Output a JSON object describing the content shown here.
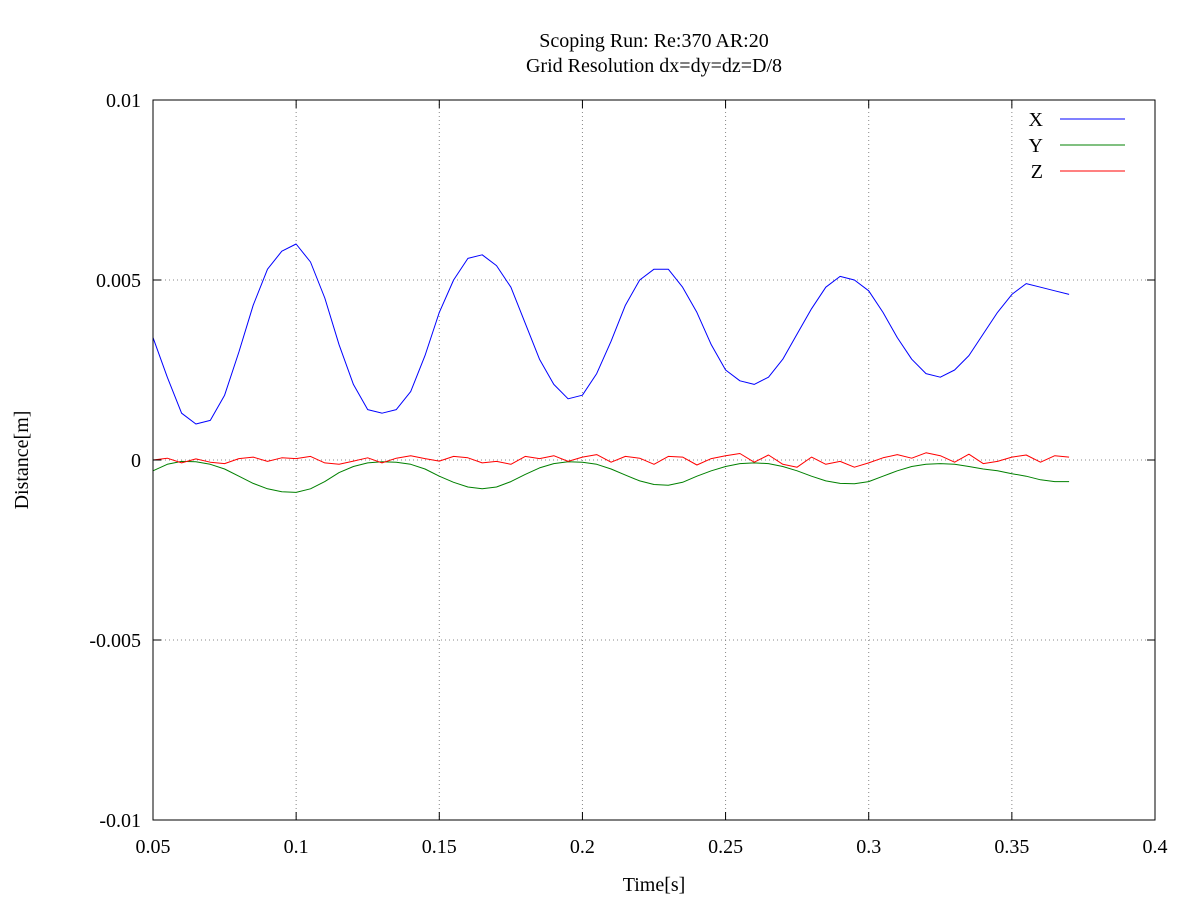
{
  "chart_data": {
    "type": "line",
    "title": "Scoping Run: Re:370  AR:20",
    "subtitle": "Grid Resolution dx=dy=dz=D/8",
    "xlabel": "Time[s]",
    "ylabel": "Distance[m]",
    "xlim": [
      0.05,
      0.4
    ],
    "ylim": [
      -0.01,
      0.01
    ],
    "xticks": [
      "0.05",
      "0.1",
      "0.15",
      "0.2",
      "0.25",
      "0.3",
      "0.35",
      "0.4"
    ],
    "yticks": [
      "-0.01",
      "-0.005",
      "0",
      "0.005",
      "0.01"
    ],
    "grid": true,
    "legend_position": "top-right",
    "series": [
      {
        "name": "X",
        "color": "#0000ff",
        "x": [
          0.05,
          0.055,
          0.06,
          0.065,
          0.07,
          0.075,
          0.08,
          0.085,
          0.09,
          0.095,
          0.1,
          0.105,
          0.11,
          0.115,
          0.12,
          0.125,
          0.13,
          0.135,
          0.14,
          0.145,
          0.15,
          0.155,
          0.16,
          0.165,
          0.17,
          0.175,
          0.18,
          0.185,
          0.19,
          0.195,
          0.2,
          0.205,
          0.21,
          0.215,
          0.22,
          0.225,
          0.23,
          0.235,
          0.24,
          0.245,
          0.25,
          0.255,
          0.26,
          0.265,
          0.27,
          0.275,
          0.28,
          0.285,
          0.29,
          0.295,
          0.3,
          0.305,
          0.31,
          0.315,
          0.32,
          0.325,
          0.33,
          0.335,
          0.34,
          0.345,
          0.35,
          0.355,
          0.36,
          0.365,
          0.37
        ],
        "y": [
          0.0034,
          0.0023,
          0.0013,
          0.001,
          0.0011,
          0.0018,
          0.003,
          0.0043,
          0.0053,
          0.0058,
          0.006,
          0.0055,
          0.0045,
          0.0032,
          0.0021,
          0.0014,
          0.0013,
          0.0014,
          0.0019,
          0.0029,
          0.0041,
          0.005,
          0.0056,
          0.0057,
          0.0054,
          0.0048,
          0.0038,
          0.0028,
          0.0021,
          0.0017,
          0.0018,
          0.0024,
          0.0033,
          0.0043,
          0.005,
          0.0053,
          0.0053,
          0.0048,
          0.0041,
          0.0032,
          0.0025,
          0.0022,
          0.0021,
          0.0023,
          0.0028,
          0.0035,
          0.0042,
          0.0048,
          0.0051,
          0.005,
          0.0047,
          0.0041,
          0.0034,
          0.0028,
          0.0024,
          0.0023,
          0.0025,
          0.0029,
          0.0035,
          0.0041,
          0.0046,
          0.0049,
          0.0048,
          0.0047,
          0.0046
        ]
      },
      {
        "name": "Y",
        "color": "#008000",
        "x": [
          0.05,
          0.055,
          0.06,
          0.065,
          0.07,
          0.075,
          0.08,
          0.085,
          0.09,
          0.095,
          0.1,
          0.105,
          0.11,
          0.115,
          0.12,
          0.125,
          0.13,
          0.135,
          0.14,
          0.145,
          0.15,
          0.155,
          0.16,
          0.165,
          0.17,
          0.175,
          0.18,
          0.185,
          0.19,
          0.195,
          0.2,
          0.205,
          0.21,
          0.215,
          0.22,
          0.225,
          0.23,
          0.235,
          0.24,
          0.245,
          0.25,
          0.255,
          0.26,
          0.265,
          0.27,
          0.275,
          0.28,
          0.285,
          0.29,
          0.295,
          0.3,
          0.305,
          0.31,
          0.315,
          0.32,
          0.325,
          0.33,
          0.335,
          0.34,
          0.345,
          0.35,
          0.355,
          0.36,
          0.365,
          0.37
        ],
        "y": [
          -0.0003,
          -0.00012,
          -4e-05,
          -5e-05,
          -0.00012,
          -0.00025,
          -0.00045,
          -0.00065,
          -0.0008,
          -0.00088,
          -0.0009,
          -0.0008,
          -0.0006,
          -0.00035,
          -0.00018,
          -8e-05,
          -5e-05,
          -6e-05,
          -0.00012,
          -0.00025,
          -0.00045,
          -0.00062,
          -0.00075,
          -0.0008,
          -0.00075,
          -0.0006,
          -0.0004,
          -0.00022,
          -0.0001,
          -5e-05,
          -6e-05,
          -0.00012,
          -0.00025,
          -0.00042,
          -0.00058,
          -0.00068,
          -0.0007,
          -0.00062,
          -0.00045,
          -0.0003,
          -0.00018,
          -0.0001,
          -8e-05,
          -0.0001,
          -0.00018,
          -0.0003,
          -0.00045,
          -0.00058,
          -0.00065,
          -0.00066,
          -0.0006,
          -0.00045,
          -0.0003,
          -0.00018,
          -0.00012,
          -0.0001,
          -0.00012,
          -0.00018,
          -0.00025,
          -0.0003,
          -0.00038,
          -0.00045,
          -0.00055,
          -0.0006,
          -0.0006
        ]
      },
      {
        "name": "Z",
        "color": "#ff0000",
        "x": [
          0.05,
          0.055,
          0.06,
          0.065,
          0.07,
          0.075,
          0.08,
          0.085,
          0.09,
          0.095,
          0.1,
          0.105,
          0.11,
          0.115,
          0.12,
          0.125,
          0.13,
          0.135,
          0.14,
          0.145,
          0.15,
          0.155,
          0.16,
          0.165,
          0.17,
          0.175,
          0.18,
          0.185,
          0.19,
          0.195,
          0.2,
          0.205,
          0.21,
          0.215,
          0.22,
          0.225,
          0.23,
          0.235,
          0.24,
          0.245,
          0.25,
          0.255,
          0.26,
          0.265,
          0.27,
          0.275,
          0.28,
          0.285,
          0.29,
          0.295,
          0.3,
          0.305,
          0.31,
          0.315,
          0.32,
          0.325,
          0.33,
          0.335,
          0.34,
          0.345,
          0.35,
          0.355,
          0.36,
          0.365,
          0.37
        ],
        "y": [
          0.0,
          5e-05,
          -8e-05,
          3e-05,
          -6e-05,
          -0.0001,
          4e-05,
          8e-05,
          -4e-05,
          6e-05,
          4e-05,
          0.0001,
          -8e-05,
          -0.00012,
          -3e-05,
          6e-05,
          -8e-05,
          5e-05,
          0.00012,
          4e-05,
          -3e-05,
          0.0001,
          6e-05,
          -8e-05,
          -4e-05,
          -0.00012,
          0.0001,
          4e-05,
          0.00012,
          -4e-05,
          8e-05,
          0.00015,
          -6e-05,
          0.0001,
          5e-05,
          -0.00012,
          0.0001,
          8e-05,
          -0.00014,
          4e-05,
          0.00012,
          0.00018,
          -6e-05,
          0.00014,
          -0.00012,
          -0.0002,
          8e-05,
          -0.00012,
          -4e-05,
          -0.0002,
          -8e-05,
          6e-05,
          0.00015,
          5e-05,
          0.0002,
          0.00012,
          -6e-05,
          0.00016,
          -0.0001,
          -4e-05,
          8e-05,
          0.00014,
          -6e-05,
          0.00012,
          8e-05
        ]
      }
    ]
  }
}
